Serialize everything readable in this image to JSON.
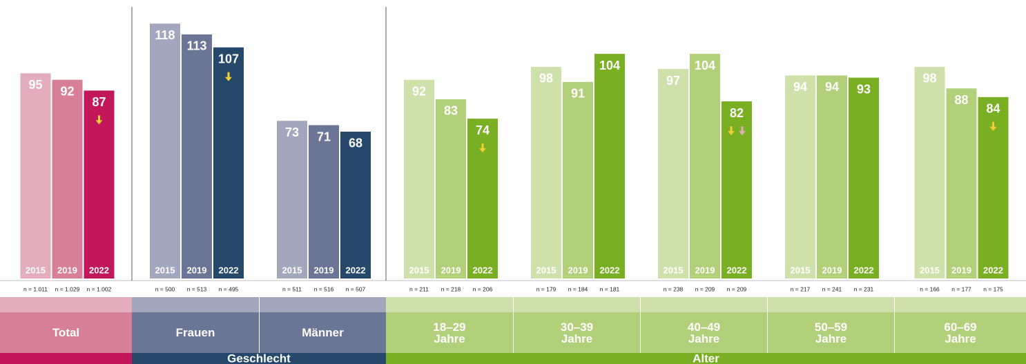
{
  "chart_data": {
    "type": "bar",
    "years": [
      "2015",
      "2019",
      "2022"
    ],
    "ylim": [
      0,
      120
    ],
    "sections": [
      {
        "colors": [
          "#e3adbd",
          "#d67f96",
          "#c2175b"
        ],
        "categories": [
          {
            "name": "Total",
            "values": [
              95,
              92,
              87
            ],
            "n": [
              "n = 1.011",
              "n = 1.029",
              "n = 1.002"
            ],
            "decline_markers": [
              "#f2d031"
            ]
          }
        ]
      },
      {
        "name": "Geschlecht",
        "colors": [
          "#a2a7bd",
          "#6b7596",
          "#26486b"
        ],
        "categories": [
          {
            "name": "Frauen",
            "values": [
              118,
              113,
              107
            ],
            "n": [
              "n = 500",
              "n = 513",
              "n = 495"
            ],
            "decline_markers": [
              "#f2d031"
            ]
          },
          {
            "name": "Männer",
            "values": [
              73,
              71,
              68
            ],
            "n": [
              "n = 511",
              "n = 516",
              "n = 507"
            ],
            "decline_markers": []
          }
        ]
      },
      {
        "name": "Alter",
        "colors": [
          "#cfe1aa",
          "#b2cf79",
          "#7aae23"
        ],
        "categories": [
          {
            "name": "18–29 Jahre",
            "values": [
              92,
              83,
              74
            ],
            "n": [
              "n = 211",
              "n = 218",
              "n = 206"
            ],
            "decline_markers": [
              "#f2d031"
            ]
          },
          {
            "name": "30–39 Jahre",
            "values": [
              98,
              91,
              104
            ],
            "n": [
              "n = 179",
              "n = 184",
              "n = 181"
            ],
            "decline_markers": []
          },
          {
            "name": "40–49 Jahre",
            "values": [
              97,
              104,
              82
            ],
            "n": [
              "n = 238",
              "n = 209",
              "n = 209"
            ],
            "decline_markers": [
              "#f2d031",
              "#e3adbd"
            ]
          },
          {
            "name": "50–59 Jahre",
            "values": [
              94,
              94,
              93
            ],
            "n": [
              "n = 217",
              "n = 241",
              "n = 231"
            ],
            "decline_markers": []
          },
          {
            "name": "60–69 Jahre",
            "values": [
              98,
              88,
              84
            ],
            "n": [
              "n = 166",
              "n = 177",
              "n = 175"
            ],
            "decline_markers": [
              "#f2d031"
            ]
          }
        ]
      }
    ]
  }
}
